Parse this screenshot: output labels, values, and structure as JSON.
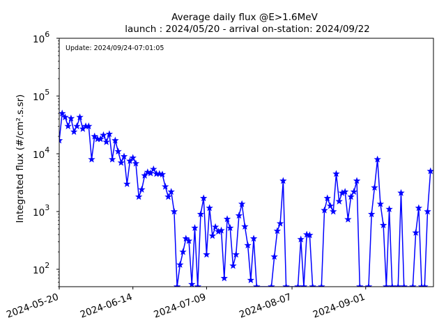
{
  "chart_data": {
    "type": "line",
    "title_line1": "Average daily flux @E>1.6MeV",
    "title_line2": "launch : 2024/05/20 - arrival on-station: 2024/09/22",
    "annotation": "Update: 2024/09/24-07:01:05",
    "ylabel": "Integrated flux (#/cm².s.sr)",
    "xlabel": "",
    "y_scale": "log",
    "ylim": [
      50,
      1000000
    ],
    "xlim": [
      "2024-05-20",
      "2024-09-24"
    ],
    "x_ticks": [
      "2024-05-20",
      "2024-06-14",
      "2024-07-09",
      "2024-08-07",
      "2024-09-01"
    ],
    "y_ticks": [
      {
        "value": 100,
        "label_base": "10",
        "label_exp": "2"
      },
      {
        "value": 1000,
        "label_base": "10",
        "label_exp": "3"
      },
      {
        "value": 10000,
        "label_base": "10",
        "label_exp": "4"
      },
      {
        "value": 100000,
        "label_base": "10",
        "label_exp": "5"
      },
      {
        "value": 1000000,
        "label_base": "10",
        "label_exp": "6"
      }
    ],
    "grid": false,
    "colors": {
      "series": "#0000ff",
      "axes": "#000000"
    },
    "series": [
      {
        "marker": "star",
        "points": [
          [
            "2024-05-20",
            17000
          ],
          [
            "2024-05-21",
            50000
          ],
          [
            "2024-05-22",
            43000
          ],
          [
            "2024-05-23",
            30000
          ],
          [
            "2024-05-24",
            41000
          ],
          [
            "2024-05-25",
            24000
          ],
          [
            "2024-05-26",
            30000
          ],
          [
            "2024-05-27",
            43000
          ],
          [
            "2024-05-28",
            27000
          ],
          [
            "2024-05-29",
            30000
          ],
          [
            "2024-05-30",
            30000
          ],
          [
            "2024-05-31",
            8000
          ],
          [
            "2024-06-01",
            20000
          ],
          [
            "2024-06-02",
            18000
          ],
          [
            "2024-06-03",
            18000
          ],
          [
            "2024-06-04",
            21000
          ],
          [
            "2024-06-05",
            16000
          ],
          [
            "2024-06-06",
            22000
          ],
          [
            "2024-06-07",
            8000
          ],
          [
            "2024-06-08",
            17000
          ],
          [
            "2024-06-09",
            11000
          ],
          [
            "2024-06-10",
            7000
          ],
          [
            "2024-06-11",
            9000
          ],
          [
            "2024-06-12",
            3000
          ],
          [
            "2024-06-13",
            7500
          ],
          [
            "2024-06-14",
            8500
          ],
          [
            "2024-06-15",
            6800
          ],
          [
            "2024-06-16",
            1800
          ],
          [
            "2024-06-17",
            2400
          ],
          [
            "2024-06-18",
            4200
          ],
          [
            "2024-06-19",
            4800
          ],
          [
            "2024-06-20",
            4600
          ],
          [
            "2024-06-21",
            5400
          ],
          [
            "2024-06-22",
            4500
          ],
          [
            "2024-06-23",
            4500
          ],
          [
            "2024-06-24",
            4400
          ],
          [
            "2024-06-25",
            2700
          ],
          [
            "2024-06-26",
            1800
          ],
          [
            "2024-06-27",
            2200
          ],
          [
            "2024-06-28",
            1000
          ],
          [
            "2024-06-29",
            50
          ],
          [
            "2024-06-30",
            120
          ],
          [
            "2024-07-01",
            200
          ],
          [
            "2024-07-02",
            340
          ],
          [
            "2024-07-03",
            310
          ],
          [
            "2024-07-04",
            55
          ],
          [
            "2024-07-05",
            520
          ],
          [
            "2024-07-06",
            50
          ],
          [
            "2024-07-07",
            900
          ],
          [
            "2024-07-08",
            1700
          ],
          [
            "2024-07-09",
            180
          ],
          [
            "2024-07-10",
            1150
          ],
          [
            "2024-07-11",
            380
          ],
          [
            "2024-07-12",
            540
          ],
          [
            "2024-07-13",
            450
          ],
          [
            "2024-07-14",
            470
          ],
          [
            "2024-07-15",
            70
          ],
          [
            "2024-07-16",
            740
          ],
          [
            "2024-07-17",
            520
          ],
          [
            "2024-07-18",
            115
          ],
          [
            "2024-07-19",
            180
          ],
          [
            "2024-07-20",
            850
          ],
          [
            "2024-07-21",
            1350
          ],
          [
            "2024-07-22",
            550
          ],
          [
            "2024-07-23",
            260
          ],
          [
            "2024-07-24",
            65
          ],
          [
            "2024-07-25",
            340
          ],
          [
            "2024-07-26",
            50
          ],
          [
            "2024-07-31",
            50
          ],
          [
            "2024-08-01",
            165
          ],
          [
            "2024-08-02",
            460
          ],
          [
            "2024-08-03",
            620
          ],
          [
            "2024-08-04",
            3400
          ],
          [
            "2024-08-05",
            50
          ],
          [
            "2024-08-09",
            50
          ],
          [
            "2024-08-10",
            330
          ],
          [
            "2024-08-11",
            50
          ],
          [
            "2024-08-12",
            400
          ],
          [
            "2024-08-13",
            390
          ],
          [
            "2024-08-14",
            50
          ],
          [
            "2024-08-17",
            50
          ],
          [
            "2024-08-18",
            1050
          ],
          [
            "2024-08-19",
            1700
          ],
          [
            "2024-08-20",
            1250
          ],
          [
            "2024-08-21",
            1000
          ],
          [
            "2024-08-22",
            4500
          ],
          [
            "2024-08-23",
            1500
          ],
          [
            "2024-08-24",
            2100
          ],
          [
            "2024-08-25",
            2200
          ],
          [
            "2024-08-26",
            730
          ],
          [
            "2024-08-27",
            1800
          ],
          [
            "2024-08-28",
            2200
          ],
          [
            "2024-08-29",
            3400
          ],
          [
            "2024-08-30",
            50
          ],
          [
            "2024-09-02",
            50
          ],
          [
            "2024-09-03",
            900
          ],
          [
            "2024-09-04",
            2600
          ],
          [
            "2024-09-05",
            8000
          ],
          [
            "2024-09-06",
            1350
          ],
          [
            "2024-09-07",
            580
          ],
          [
            "2024-09-08",
            50
          ],
          [
            "2024-09-09",
            1100
          ],
          [
            "2024-09-10",
            50
          ],
          [
            "2024-09-12",
            50
          ],
          [
            "2024-09-13",
            2100
          ],
          [
            "2024-09-14",
            50
          ],
          [
            "2024-09-17",
            50
          ],
          [
            "2024-09-18",
            430
          ],
          [
            "2024-09-19",
            1150
          ],
          [
            "2024-09-20",
            50
          ],
          [
            "2024-09-21",
            50
          ],
          [
            "2024-09-22",
            1000
          ],
          [
            "2024-09-23",
            5000
          ]
        ]
      }
    ]
  }
}
